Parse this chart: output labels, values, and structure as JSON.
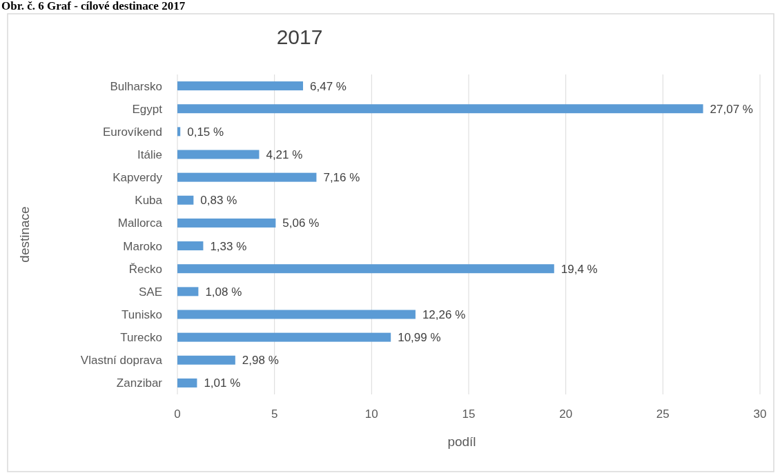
{
  "chart_data": {
    "type": "bar",
    "orientation": "horizontal",
    "title": "2017",
    "xlabel": "podíl",
    "ylabel": "destinace",
    "annotations": [
      "Obr. č. 6 Graf - cílové destinace 2017"
    ],
    "categories": [
      "Bulharsko",
      "Egypt",
      "Eurovíkend",
      "Itálie",
      "Kapverdy",
      "Kuba",
      "Mallorca",
      "Maroko",
      "Řecko",
      "SAE",
      "Tunisko",
      "Turecko",
      "Vlastní doprava",
      "Zanzibar"
    ],
    "values": [
      6.47,
      27.07,
      0.15,
      4.21,
      7.16,
      0.83,
      5.06,
      1.33,
      19.4,
      1.08,
      12.26,
      10.99,
      2.98,
      1.01
    ],
    "value_labels": [
      "6,47 %",
      "27,07 %",
      "0,15 %",
      "4,21 %",
      "7,16 %",
      "0,83 %",
      "5,06 %",
      "1,33 %",
      "19,4 %",
      "1,08 %",
      "12,26 %",
      "10,99 %",
      "2,98 %",
      "1,01 %"
    ],
    "color": "#5b9bd5",
    "xlim": [
      0,
      30
    ],
    "xticks": [
      0,
      5,
      10,
      15,
      20,
      25,
      30
    ],
    "grid": "x"
  }
}
